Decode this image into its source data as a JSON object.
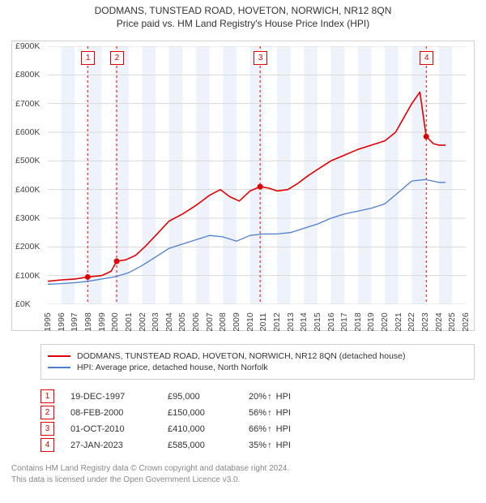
{
  "title": {
    "main": "DODMANS, TUNSTEAD ROAD, HOVETON, NORWICH, NR12 8QN",
    "sub": "Price paid vs. HM Land Registry's House Price Index (HPI)"
  },
  "chart": {
    "background_color": "#ffffff",
    "grid_color": "#d8d8d8",
    "axis_color": "#cfcfcf",
    "alt_band_color": "#eef3fb",
    "x": {
      "min": 1995,
      "max": 2026,
      "ticks": [
        1995,
        1996,
        1997,
        1998,
        1999,
        2000,
        2001,
        2002,
        2003,
        2004,
        2005,
        2006,
        2007,
        2008,
        2009,
        2010,
        2011,
        2012,
        2013,
        2014,
        2015,
        2016,
        2017,
        2018,
        2019,
        2020,
        2021,
        2022,
        2023,
        2024,
        2025,
        2026
      ]
    },
    "y": {
      "min": 0,
      "max": 900000,
      "tick_step": 100000,
      "tick_labels": [
        "£0K",
        "£100K",
        "£200K",
        "£300K",
        "£400K",
        "£500K",
        "£600K",
        "£700K",
        "£800K",
        "£900K"
      ]
    },
    "markers": [
      {
        "n": "1",
        "year": 1997.96,
        "value": 95000
      },
      {
        "n": "2",
        "year": 2000.11,
        "value": 150000
      },
      {
        "n": "3",
        "year": 2010.75,
        "value": 410000
      },
      {
        "n": "4",
        "year": 2023.07,
        "value": 585000
      }
    ],
    "series_price": {
      "color": "#e10000",
      "width": 1.6,
      "points": [
        [
          1995.0,
          80000
        ],
        [
          1996.0,
          85000
        ],
        [
          1997.0,
          88000
        ],
        [
          1997.96,
          95000
        ],
        [
          1998.5,
          98000
        ],
        [
          1999.0,
          100000
        ],
        [
          1999.7,
          115000
        ],
        [
          2000.11,
          150000
        ],
        [
          2000.8,
          155000
        ],
        [
          2001.5,
          170000
        ],
        [
          2002.2,
          200000
        ],
        [
          2003.0,
          240000
        ],
        [
          2004.0,
          290000
        ],
        [
          2005.0,
          315000
        ],
        [
          2006.0,
          345000
        ],
        [
          2007.0,
          380000
        ],
        [
          2007.8,
          400000
        ],
        [
          2008.5,
          375000
        ],
        [
          2009.2,
          360000
        ],
        [
          2010.0,
          395000
        ],
        [
          2010.75,
          410000
        ],
        [
          2011.4,
          405000
        ],
        [
          2012.0,
          395000
        ],
        [
          2012.8,
          400000
        ],
        [
          2013.5,
          420000
        ],
        [
          2014.2,
          445000
        ],
        [
          2015.0,
          470000
        ],
        [
          2016.0,
          500000
        ],
        [
          2017.0,
          520000
        ],
        [
          2018.0,
          540000
        ],
        [
          2019.0,
          555000
        ],
        [
          2020.0,
          570000
        ],
        [
          2020.8,
          600000
        ],
        [
          2021.4,
          650000
        ],
        [
          2022.0,
          700000
        ],
        [
          2022.6,
          740000
        ],
        [
          2023.07,
          585000
        ],
        [
          2023.6,
          560000
        ],
        [
          2024.0,
          555000
        ],
        [
          2024.5,
          555000
        ]
      ],
      "dots": [
        [
          1997.96,
          95000
        ],
        [
          2000.11,
          150000
        ],
        [
          2010.75,
          410000
        ],
        [
          2023.07,
          585000
        ]
      ]
    },
    "series_hpi": {
      "color": "#4f7fcf",
      "width": 1.3,
      "points": [
        [
          1995.0,
          70000
        ],
        [
          1996.0,
          72000
        ],
        [
          1997.0,
          75000
        ],
        [
          1998.0,
          80000
        ],
        [
          1999.0,
          88000
        ],
        [
          2000.0,
          96000
        ],
        [
          2001.0,
          110000
        ],
        [
          2002.0,
          135000
        ],
        [
          2003.0,
          165000
        ],
        [
          2004.0,
          195000
        ],
        [
          2005.0,
          210000
        ],
        [
          2006.0,
          225000
        ],
        [
          2007.0,
          240000
        ],
        [
          2008.0,
          235000
        ],
        [
          2009.0,
          220000
        ],
        [
          2010.0,
          240000
        ],
        [
          2011.0,
          245000
        ],
        [
          2012.0,
          245000
        ],
        [
          2013.0,
          250000
        ],
        [
          2014.0,
          265000
        ],
        [
          2015.0,
          280000
        ],
        [
          2016.0,
          300000
        ],
        [
          2017.0,
          315000
        ],
        [
          2018.0,
          325000
        ],
        [
          2019.0,
          335000
        ],
        [
          2020.0,
          350000
        ],
        [
          2021.0,
          390000
        ],
        [
          2022.0,
          430000
        ],
        [
          2023.0,
          435000
        ],
        [
          2024.0,
          425000
        ],
        [
          2024.5,
          425000
        ]
      ]
    }
  },
  "legend": {
    "items": [
      {
        "color": "#e10000",
        "text": "DODMANS, TUNSTEAD ROAD, HOVETON, NORWICH, NR12 8QN (detached house)"
      },
      {
        "color": "#4f7fcf",
        "text": "HPI: Average price, detached house, North Norfolk"
      }
    ]
  },
  "transactions": {
    "arrow": "↑",
    "suffix": "HPI",
    "rows": [
      {
        "n": "1",
        "date": "19-DEC-1997",
        "price": "£95,000",
        "pct": "20%"
      },
      {
        "n": "2",
        "date": "08-FEB-2000",
        "price": "£150,000",
        "pct": "56%"
      },
      {
        "n": "3",
        "date": "01-OCT-2010",
        "price": "£410,000",
        "pct": "66%"
      },
      {
        "n": "4",
        "date": "27-JAN-2023",
        "price": "£585,000",
        "pct": "35%"
      }
    ]
  },
  "footer": {
    "line1": "Contains HM Land Registry data © Crown copyright and database right 2024.",
    "line2": "This data is licensed under the Open Government Licence v3.0."
  }
}
